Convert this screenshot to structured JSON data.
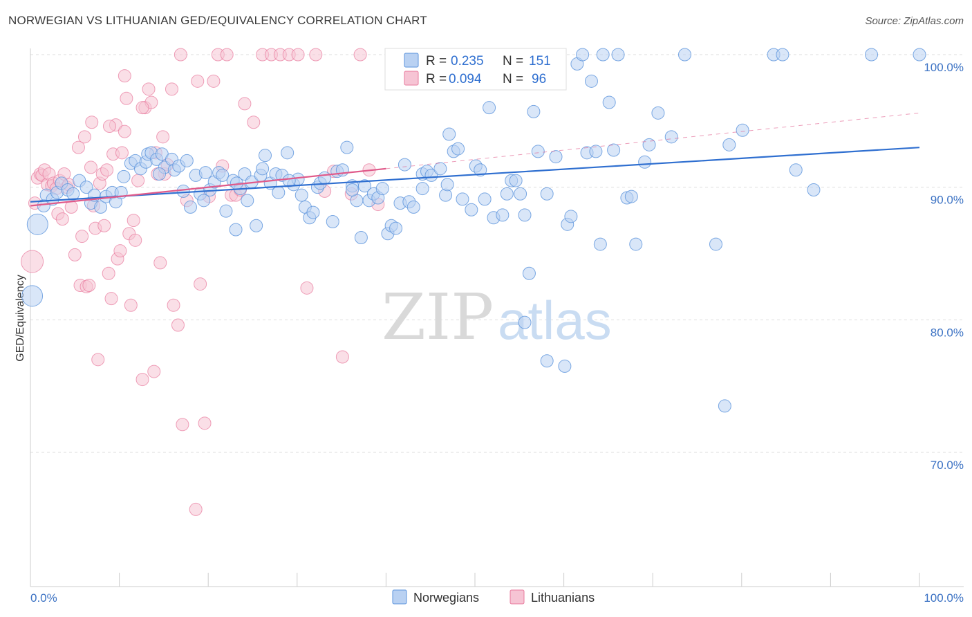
{
  "title": "NORWEGIAN VS LITHUANIAN GED/EQUIVALENCY CORRELATION CHART",
  "source": "Source: ZipAtlas.com",
  "watermark": {
    "zip": "ZIP",
    "atlas": "atlas"
  },
  "legend": {
    "r_label": "R =",
    "n_label": "N =",
    "rows": [
      {
        "name": "Norwegians",
        "r": "0.235",
        "n": "151"
      },
      {
        "name": "Lithuanians",
        "r": "0.094",
        "n": "96"
      }
    ]
  },
  "chart_data": {
    "type": "scatter",
    "title": "NORWEGIAN VS LITHUANIAN GED/EQUIVALENCY CORRELATION CHART",
    "xlabel": "",
    "ylabel": "GED/Equivalency",
    "xlim": [
      0,
      100
    ],
    "ylim": [
      61,
      101
    ],
    "x_tick_labels": [
      "0.0%",
      "100.0%"
    ],
    "y_ticks": [
      70,
      80,
      90,
      100
    ],
    "y_tick_labels": [
      "70.0%",
      "80.0%",
      "90.0%",
      "100.0%"
    ],
    "grid": true,
    "colors": {
      "norwegians": "#5b93dc",
      "norwegians_fill": "#b9d1f2",
      "lithuanians": "#e8799c",
      "lithuanians_fill": "#f6c4d4",
      "blue_line": "#2f6fd0",
      "pink_line": "#e05a8a"
    },
    "series": [
      {
        "name": "Norwegians",
        "r": 0.235,
        "n": 151,
        "trend": {
          "x": [
            0,
            100
          ],
          "y": [
            88.9,
            93.0
          ]
        },
        "points": [
          [
            0.8,
            87.2
          ],
          [
            0.2,
            81.8
          ],
          [
            1.5,
            88.6
          ],
          [
            1.8,
            89.4
          ],
          [
            2.5,
            89.1
          ],
          [
            3,
            89.6
          ],
          [
            3.5,
            90.3
          ],
          [
            4.2,
            89.8
          ],
          [
            4.8,
            89.5
          ],
          [
            5.5,
            90.5
          ],
          [
            6.3,
            90.0
          ],
          [
            6.8,
            88.8
          ],
          [
            7.2,
            89.4
          ],
          [
            7.9,
            88.5
          ],
          [
            8.5,
            89.3
          ],
          [
            9.2,
            89.6
          ],
          [
            9.6,
            88.9
          ],
          [
            10.2,
            89.6
          ],
          [
            10.5,
            90.8
          ],
          [
            11.3,
            91.8
          ],
          [
            11.8,
            92.0
          ],
          [
            12.4,
            91.4
          ],
          [
            13.0,
            91.9
          ],
          [
            13.2,
            92.5
          ],
          [
            13.6,
            92.6
          ],
          [
            14.2,
            92.1
          ],
          [
            14.8,
            92.5
          ],
          [
            15.1,
            91.5
          ],
          [
            15.9,
            92.1
          ],
          [
            16.2,
            91.3
          ],
          [
            16.7,
            91.6
          ],
          [
            17.2,
            89.7
          ],
          [
            17.6,
            92.0
          ],
          [
            18.0,
            88.5
          ],
          [
            18.6,
            90.9
          ],
          [
            19.1,
            89.5
          ],
          [
            19.7,
            91.1
          ],
          [
            20.2,
            89.8
          ],
          [
            20.7,
            90.4
          ],
          [
            21.2,
            91.1
          ],
          [
            21.6,
            90.9
          ],
          [
            22.0,
            88.2
          ],
          [
            22.8,
            90.5
          ],
          [
            23.1,
            86.8
          ],
          [
            23.6,
            89.9
          ],
          [
            24.1,
            91.0
          ],
          [
            24.4,
            89.0
          ],
          [
            24.9,
            90.4
          ],
          [
            25.4,
            87.1
          ],
          [
            25.9,
            90.9
          ],
          [
            26.1,
            91.4
          ],
          [
            26.4,
            92.4
          ],
          [
            27.0,
            90.3
          ],
          [
            27.6,
            91.0
          ],
          [
            27.9,
            89.6
          ],
          [
            28.3,
            90.9
          ],
          [
            28.9,
            92.6
          ],
          [
            29.6,
            90.2
          ],
          [
            30.1,
            90.6
          ],
          [
            30.5,
            89.4
          ],
          [
            30.9,
            88.5
          ],
          [
            31.4,
            87.7
          ],
          [
            31.8,
            88.1
          ],
          [
            32.3,
            90.0
          ],
          [
            32.6,
            90.3
          ],
          [
            33.1,
            90.7
          ],
          [
            34.0,
            87.4
          ],
          [
            34.5,
            91.2
          ],
          [
            35.1,
            91.3
          ],
          [
            35.6,
            93.0
          ],
          [
            36.2,
            90.1
          ],
          [
            36.7,
            89.0
          ],
          [
            37.2,
            86.2
          ],
          [
            37.6,
            90.1
          ],
          [
            38.1,
            89.0
          ],
          [
            38.6,
            89.5
          ],
          [
            39.1,
            89.2
          ],
          [
            39.6,
            89.9
          ],
          [
            40.2,
            86.5
          ],
          [
            40.6,
            87.1
          ],
          [
            41.1,
            86.9
          ],
          [
            41.6,
            88.8
          ],
          [
            42.1,
            91.7
          ],
          [
            42.6,
            88.9
          ],
          [
            43.1,
            88.5
          ],
          [
            44.1,
            91.0
          ],
          [
            44.6,
            91.2
          ],
          [
            45.1,
            90.9
          ],
          [
            46.1,
            91.4
          ],
          [
            46.7,
            89.4
          ],
          [
            47.1,
            94.0
          ],
          [
            47.6,
            92.7
          ],
          [
            48.1,
            92.9
          ],
          [
            48.6,
            89.1
          ],
          [
            49.6,
            88.3
          ],
          [
            50.1,
            91.6
          ],
          [
            50.6,
            91.3
          ],
          [
            51.1,
            89.1
          ],
          [
            51.6,
            96.0
          ],
          [
            52.1,
            87.7
          ],
          [
            53.1,
            87.9
          ],
          [
            53.6,
            89.5
          ],
          [
            54.1,
            90.5
          ],
          [
            54.6,
            90.5
          ],
          [
            55.1,
            89.5
          ],
          [
            55.6,
            87.9
          ],
          [
            56.1,
            83.5
          ],
          [
            56.6,
            95.7
          ],
          [
            57.1,
            92.7
          ],
          [
            58.1,
            89.5
          ],
          [
            59.1,
            92.3
          ],
          [
            60.1,
            76.5
          ],
          [
            60.4,
            87.2
          ],
          [
            60.8,
            87.8
          ],
          [
            61.5,
            99.3
          ],
          [
            62.1,
            100.0
          ],
          [
            62.6,
            92.6
          ],
          [
            63.1,
            98.0
          ],
          [
            63.6,
            92.7
          ],
          [
            64.1,
            85.7
          ],
          [
            64.4,
            100.0
          ],
          [
            65.1,
            96.4
          ],
          [
            65.6,
            92.8
          ],
          [
            66.1,
            100.0
          ],
          [
            67.1,
            89.2
          ],
          [
            67.6,
            89.3
          ],
          [
            68.1,
            85.7
          ],
          [
            69.1,
            91.9
          ],
          [
            69.6,
            93.2
          ],
          [
            70.6,
            95.6
          ],
          [
            72.1,
            93.8
          ],
          [
            73.6,
            100.0
          ],
          [
            77.1,
            85.7
          ],
          [
            78.1,
            73.5
          ],
          [
            78.6,
            93.2
          ],
          [
            80.1,
            94.3
          ],
          [
            83.6,
            100.0
          ],
          [
            84.6,
            100.0
          ],
          [
            86.1,
            91.3
          ],
          [
            88.1,
            89.8
          ],
          [
            94.6,
            100.0
          ],
          [
            100.0,
            100.0
          ],
          [
            55.6,
            79.8
          ],
          [
            58.1,
            76.9
          ],
          [
            44.1,
            89.9
          ],
          [
            36.2,
            89.8
          ],
          [
            29.1,
            90.5
          ],
          [
            14.5,
            91.0
          ],
          [
            46.9,
            90.2
          ],
          [
            23.2,
            90.3
          ],
          [
            19.5,
            89.0
          ]
        ]
      },
      {
        "name": "Lithuanians",
        "r": 0.094,
        "n": 96,
        "trend": {
          "x": [
            0,
            40
          ],
          "y": [
            88.6,
            91.4
          ]
        },
        "dashed_ext": {
          "x": [
            40,
            100
          ],
          "y": [
            91.4,
            95.6
          ]
        },
        "points": [
          [
            0.2,
            84.4
          ],
          [
            0.5,
            88.8
          ],
          [
            0.8,
            90.7
          ],
          [
            1.1,
            91.0
          ],
          [
            1.3,
            90.9
          ],
          [
            1.6,
            91.3
          ],
          [
            1.9,
            90.2
          ],
          [
            2.1,
            91.0
          ],
          [
            2.4,
            90.1
          ],
          [
            2.6,
            90.3
          ],
          [
            2.9,
            89.9
          ],
          [
            3.1,
            88.0
          ],
          [
            3.3,
            90.5
          ],
          [
            3.6,
            87.6
          ],
          [
            3.8,
            91.0
          ],
          [
            4.1,
            90.0
          ],
          [
            4.3,
            90.2
          ],
          [
            4.6,
            88.5
          ],
          [
            5.0,
            84.9
          ],
          [
            5.4,
            93.0
          ],
          [
            5.6,
            82.6
          ],
          [
            5.8,
            86.3
          ],
          [
            6.1,
            93.8
          ],
          [
            6.3,
            82.5
          ],
          [
            6.6,
            82.6
          ],
          [
            6.8,
            91.5
          ],
          [
            7.1,
            88.6
          ],
          [
            7.3,
            86.9
          ],
          [
            7.6,
            77.0
          ],
          [
            7.8,
            90.3
          ],
          [
            8.1,
            91.0
          ],
          [
            8.3,
            87.1
          ],
          [
            8.6,
            91.3
          ],
          [
            8.8,
            83.5
          ],
          [
            9.1,
            81.6
          ],
          [
            9.3,
            92.5
          ],
          [
            9.6,
            94.7
          ],
          [
            9.8,
            84.6
          ],
          [
            10.1,
            85.2
          ],
          [
            10.3,
            92.6
          ],
          [
            10.6,
            98.4
          ],
          [
            10.8,
            96.7
          ],
          [
            11.1,
            86.5
          ],
          [
            11.3,
            81.1
          ],
          [
            11.6,
            87.5
          ],
          [
            11.8,
            86.0
          ],
          [
            12.1,
            90.5
          ],
          [
            12.6,
            75.5
          ],
          [
            12.9,
            96.0
          ],
          [
            13.3,
            97.4
          ],
          [
            13.6,
            96.4
          ],
          [
            13.9,
            76.1
          ],
          [
            14.1,
            92.6
          ],
          [
            14.6,
            84.3
          ],
          [
            14.9,
            93.8
          ],
          [
            15.1,
            91.0
          ],
          [
            15.4,
            91.7
          ],
          [
            16.1,
            81.1
          ],
          [
            16.6,
            79.6
          ],
          [
            16.9,
            100.0
          ],
          [
            17.1,
            72.1
          ],
          [
            17.6,
            89.0
          ],
          [
            18.6,
            65.7
          ],
          [
            18.8,
            98.0
          ],
          [
            19.1,
            82.7
          ],
          [
            19.6,
            72.2
          ],
          [
            20.1,
            89.3
          ],
          [
            20.6,
            98.0
          ],
          [
            21.1,
            100.0
          ],
          [
            21.6,
            91.6
          ],
          [
            22.1,
            100.0
          ],
          [
            22.6,
            89.4
          ],
          [
            23.1,
            89.4
          ],
          [
            23.6,
            89.8
          ],
          [
            24.1,
            96.3
          ],
          [
            25.1,
            94.9
          ],
          [
            26.1,
            100.0
          ],
          [
            27.1,
            100.0
          ],
          [
            28.1,
            100.0
          ],
          [
            29.1,
            100.0
          ],
          [
            30.1,
            100.0
          ],
          [
            31.1,
            82.4
          ],
          [
            32.1,
            100.0
          ],
          [
            33.1,
            89.7
          ],
          [
            34.1,
            91.2
          ],
          [
            35.1,
            77.2
          ],
          [
            36.1,
            89.5
          ],
          [
            37.1,
            100.0
          ],
          [
            38.1,
            91.3
          ],
          [
            39.1,
            88.7
          ],
          [
            6.9,
            94.9
          ],
          [
            8.9,
            94.6
          ],
          [
            12.6,
            96.0
          ],
          [
            15.9,
            97.4
          ],
          [
            10.6,
            94.2
          ],
          [
            14.3,
            91.0
          ]
        ]
      }
    ]
  },
  "bottom_legend": [
    {
      "label": "Norwegians"
    },
    {
      "label": "Lithuanians"
    }
  ]
}
